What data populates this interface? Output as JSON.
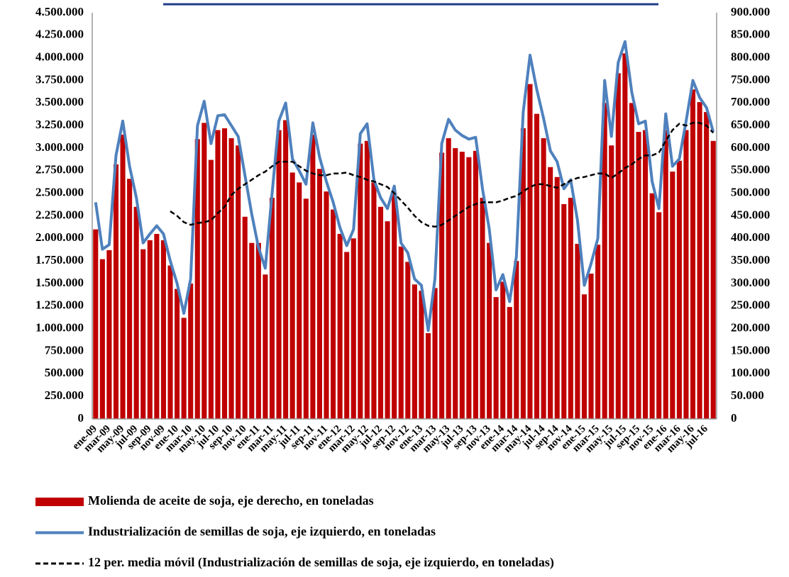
{
  "chart_data": {
    "type": "bar-line",
    "categories": [
      "ene-09",
      null,
      "mar-09",
      null,
      "may-09",
      null,
      "jul-09",
      null,
      "sep-09",
      null,
      "nov-09",
      null,
      "ene-10",
      null,
      "mar-10",
      null,
      "may-10",
      null,
      "jul-10",
      null,
      "sep-10",
      null,
      "nov-10",
      null,
      "ene-11",
      null,
      "mar-11",
      null,
      "may-11",
      null,
      "jul-11",
      null,
      "sep-11",
      null,
      "nov-11",
      null,
      "ene-12",
      null,
      "mar-12",
      null,
      "may-12",
      null,
      "jul-12",
      null,
      "sep-12",
      null,
      "nov-12",
      null,
      "ene-13",
      null,
      "mar-13",
      null,
      "may-13",
      null,
      "jul-13",
      null,
      "sep-13",
      null,
      "nov-13",
      null,
      "ene-14",
      null,
      "mar-14",
      null,
      "may-14",
      null,
      "jul-14",
      null,
      "sep-14",
      null,
      "nov-14",
      null,
      "ene-15",
      null,
      "mar-15",
      null,
      "may-15",
      null,
      "jul-15",
      null,
      "sep-15",
      null,
      "nov-15",
      null,
      "ene-16",
      null,
      "mar-16",
      null,
      "may-16",
      null,
      "jul-16",
      null
    ],
    "series": [
      {
        "name": "Molienda de aceite de soja, eje derecho, en toneladas",
        "kind": "bar",
        "axis": "y2",
        "color": "#c00000",
        "values": [
          420000,
          354000,
          374000,
          564000,
          630000,
          532000,
          470000,
          376000,
          396000,
          410000,
          396000,
          340000,
          288000,
          224000,
          300000,
          620000,
          656000,
          574000,
          640000,
          644000,
          622000,
          606000,
          448000,
          390000,
          390000,
          320000,
          490000,
          640000,
          662000,
          546000,
          524000,
          488000,
          630000,
          554000,
          504000,
          464000,
          410000,
          370000,
          400000,
          610000,
          616000,
          524000,
          470000,
          438000,
          500000,
          382000,
          348000,
          298000,
          284000,
          190000,
          290000,
          590000,
          622000,
          600000,
          592000,
          580000,
          594000,
          490000,
          390000,
          270000,
          304000,
          248000,
          350000,
          644000,
          742000,
          676000,
          622000,
          558000,
          536000,
          476000,
          490000,
          388000,
          276000,
          322000,
          386000,
          700000,
          606000,
          766000,
          810000,
          700000,
          636000,
          640000,
          500000,
          458000,
          640000,
          548000,
          572000,
          640000,
          730000,
          702000,
          680000,
          616000
        ]
      },
      {
        "name": "Industrialización de semillas de soja, eje izquierdo, en toneladas",
        "kind": "line",
        "axis": "y",
        "color": "#4f81bd",
        "values": [
          2400000,
          1880000,
          1930000,
          2920000,
          3300000,
          2800000,
          2450000,
          1950000,
          2050000,
          2140000,
          2050000,
          1750000,
          1500000,
          1170000,
          1550000,
          3250000,
          3520000,
          3050000,
          3360000,
          3370000,
          3250000,
          3130000,
          2700000,
          2270000,
          1900000,
          1670000,
          2500000,
          3300000,
          3500000,
          2880000,
          2750000,
          2600000,
          3280000,
          2900000,
          2630000,
          2400000,
          2120000,
          1920000,
          2100000,
          3160000,
          3270000,
          2650000,
          2450000,
          2330000,
          2580000,
          1950000,
          1840000,
          1550000,
          1480000,
          980000,
          1550000,
          3050000,
          3320000,
          3200000,
          3140000,
          3100000,
          3120000,
          2550000,
          2100000,
          1430000,
          1600000,
          1300000,
          1800000,
          3400000,
          4030000,
          3650000,
          3330000,
          2970000,
          2850000,
          2550000,
          2650000,
          2200000,
          1480000,
          1720000,
          2000000,
          3750000,
          3130000,
          3950000,
          4180000,
          3620000,
          3270000,
          3300000,
          2630000,
          2330000,
          3380000,
          2800000,
          2880000,
          3300000,
          3750000,
          3560000,
          3450000,
          3180000
        ]
      },
      {
        "name": "12 per. media móvil (Industrialización de semillas de soja, eje izquierdo, en toneladas)",
        "kind": "line",
        "style": "dashed",
        "axis": "y",
        "color": "#000000",
        "values": [
          null,
          null,
          null,
          null,
          null,
          null,
          null,
          null,
          null,
          null,
          null,
          2300000,
          2250000,
          2180000,
          2150000,
          2170000,
          2180000,
          2200000,
          2280000,
          2350000,
          2480000,
          2550000,
          2600000,
          2650000,
          2700000,
          2740000,
          2800000,
          2850000,
          2850000,
          2850000,
          2800000,
          2750000,
          2720000,
          2700000,
          2700000,
          2720000,
          2720000,
          2730000,
          2700000,
          2680000,
          2650000,
          2630000,
          2600000,
          2570000,
          2500000,
          2420000,
          2340000,
          2250000,
          2180000,
          2140000,
          2130000,
          2150000,
          2200000,
          2250000,
          2300000,
          2350000,
          2380000,
          2400000,
          2400000,
          2400000,
          2420000,
          2450000,
          2470000,
          2520000,
          2570000,
          2600000,
          2600000,
          2580000,
          2560000,
          2600000,
          2640000,
          2670000,
          2680000,
          2700000,
          2720000,
          2720000,
          2670000,
          2720000,
          2780000,
          2820000,
          2880000,
          2920000,
          2920000,
          2950000,
          3080000,
          3200000,
          3270000,
          3250000,
          3280000,
          3280000,
          3250000,
          3170000
        ]
      }
    ],
    "ylim": [
      0,
      4500000
    ],
    "yticks": [
      0,
      {
        "value": 250000,
        "label": "250.000"
      },
      {
        "value": 500000,
        "label": "500.000"
      },
      {
        "value": 750000,
        "label": "750.000"
      },
      {
        "value": 1000000,
        "label": "1.000.000"
      },
      {
        "value": 1250000,
        "label": "1.250.000"
      },
      {
        "value": 1500000,
        "label": "1.500.000"
      },
      {
        "value": 1750000,
        "label": "1.750.000"
      },
      {
        "value": 2000000,
        "label": "2.000.000"
      },
      {
        "value": 2250000,
        "label": "2.250.000"
      },
      {
        "value": 2500000,
        "label": "2.500.000"
      },
      {
        "value": 2750000,
        "label": "2.750.000"
      },
      {
        "value": 3000000,
        "label": "3.000.000"
      },
      {
        "value": 3250000,
        "label": "3.250.000"
      },
      {
        "value": 3500000,
        "label": "3.500.000"
      },
      {
        "value": 3750000,
        "label": "3.750.000"
      },
      {
        "value": 4000000,
        "label": "4.000.000"
      },
      {
        "value": 4250000,
        "label": "4.250.000"
      },
      {
        "value": 4500000,
        "label": "4.500.000"
      }
    ],
    "y2lim": [
      0,
      900000
    ],
    "y2ticks": [
      0,
      {
        "value": 50000,
        "label": "50.000"
      },
      {
        "value": 100000,
        "label": "100.000"
      },
      {
        "value": 150000,
        "label": "150.000"
      },
      {
        "value": 200000,
        "label": "200.000"
      },
      {
        "value": 250000,
        "label": "250.000"
      },
      {
        "value": 300000,
        "label": "300.000"
      },
      {
        "value": 350000,
        "label": "350.000"
      },
      {
        "value": 400000,
        "label": "400.000"
      },
      {
        "value": 450000,
        "label": "450.000"
      },
      {
        "value": 500000,
        "label": "500.000"
      },
      {
        "value": 550000,
        "label": "550.000"
      },
      {
        "value": 600000,
        "label": "600.000"
      },
      {
        "value": 650000,
        "label": "650.000"
      },
      {
        "value": 700000,
        "label": "700.000"
      },
      {
        "value": 750000,
        "label": "750.000"
      },
      {
        "value": 800000,
        "label": "800.000"
      },
      {
        "value": 850000,
        "label": "850.000"
      },
      {
        "value": 900000,
        "label": "900.000"
      }
    ],
    "grid": false
  }
}
